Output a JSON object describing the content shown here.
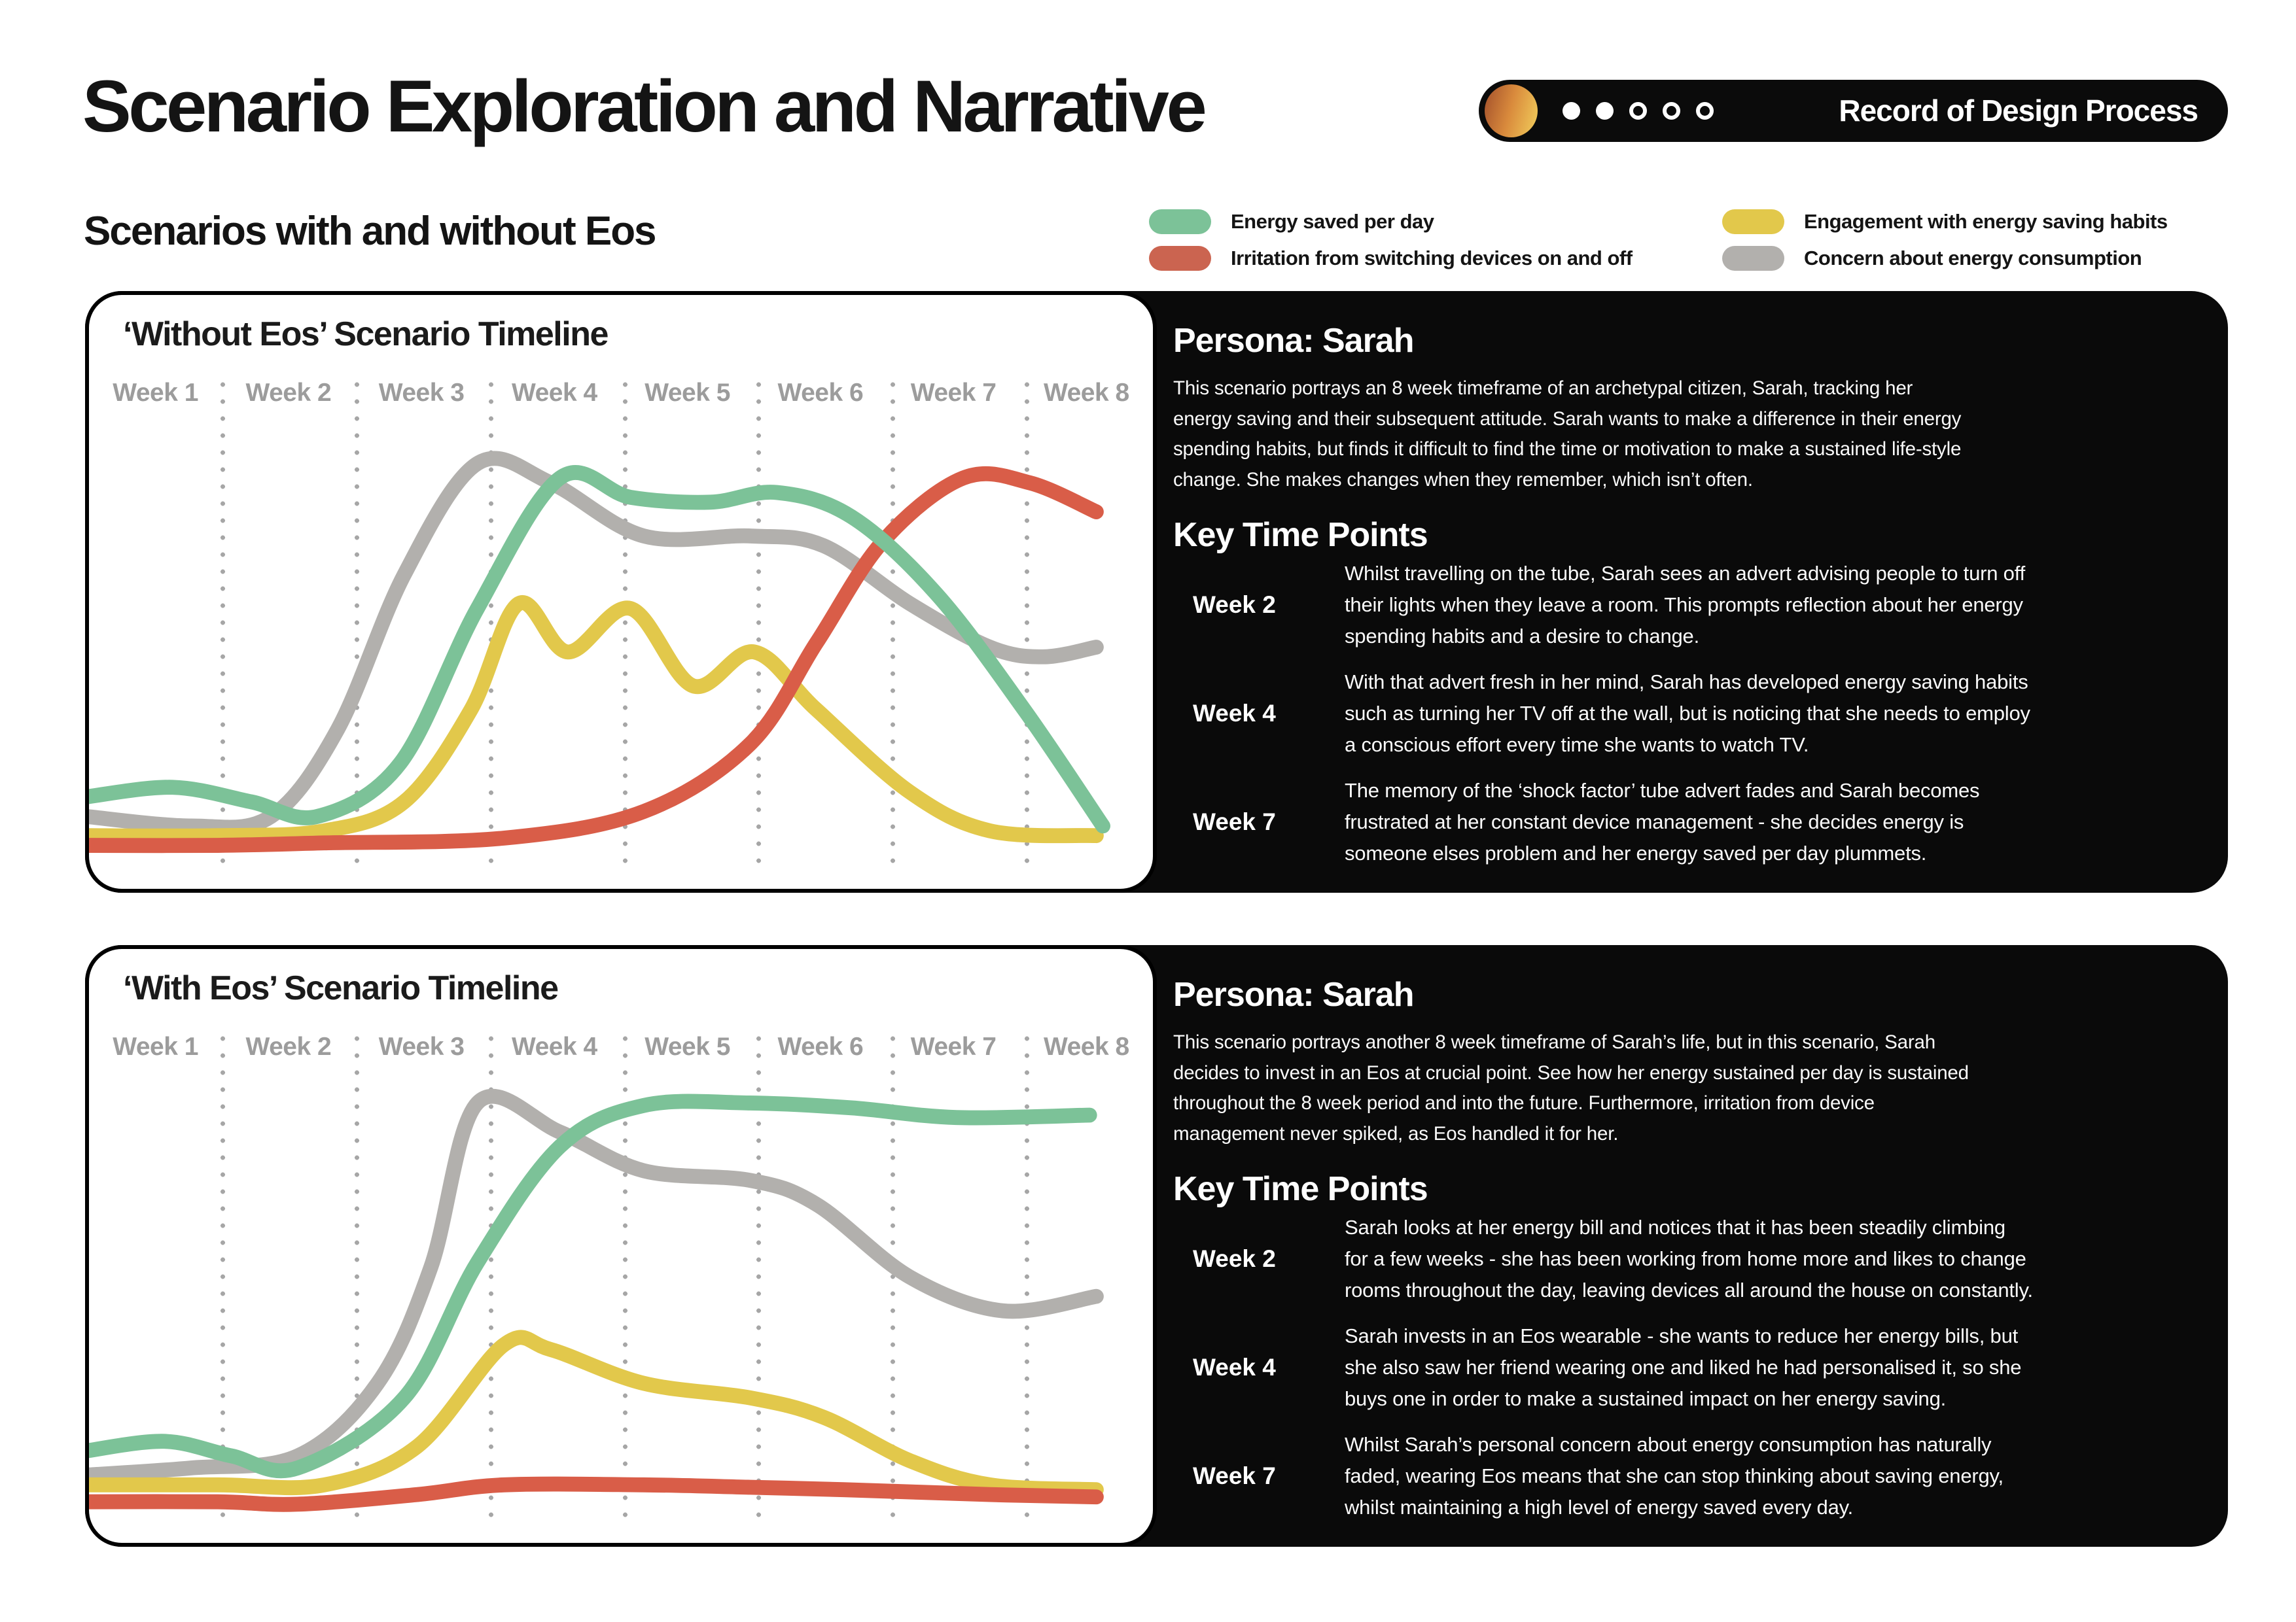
{
  "page": {
    "title": "Scenario Exploration and Narrative",
    "subtitle": "Scenarios with and without Eos"
  },
  "badge": {
    "label": "Record of Design Process",
    "dots_filled": 2,
    "dots_total": 5
  },
  "legend": [
    {
      "label": "Energy saved per day",
      "color": "#7cc298"
    },
    {
      "label": "Irritation from switching devices on and off",
      "color": "#cb6450"
    },
    {
      "label": "Engagement with energy saving habits",
      "color": "#e2c84b"
    },
    {
      "label": "Concern about energy consumption",
      "color": "#b2b0ad"
    }
  ],
  "panels": [
    {
      "chart_title": "‘Without Eos’ Scenario Timeline",
      "weeks": [
        "Week 1",
        "Week 2",
        "Week 3",
        "Week 4",
        "Week 5",
        "Week 6",
        "Week 7",
        "Week 8"
      ],
      "persona_heading": "Persona: Sarah",
      "intro": "This scenario portrays an 8 week timeframe of an archetypal citizen, Sarah, tracking her\nenergy saving and their subsequent attitude. Sarah wants to make a difference in their energy\nspending habits, but finds it difficult to find the time or motivation to make a sustained life-style\nchange. She makes changes when they remember, which isn’t often.",
      "key_heading": "Key Time Points",
      "key_points": [
        {
          "week": "Week 2",
          "text": "Whilst travelling on the tube, Sarah sees an advert advising people to turn off\ntheir lights when they leave a room. This prompts reflection about her energy\nspending habits and a desire to change."
        },
        {
          "week": "Week 4",
          "text": "With that advert fresh in her mind, Sarah has developed energy saving habits\nsuch as turning her TV off at the wall, but is noticing that she needs to employ\na conscious effort every time she wants to watch TV."
        },
        {
          "week": "Week 7",
          "text": "The memory of the ‘shock factor’ tube advert fades and Sarah becomes\nfrustrated at her constant device management - she decides energy is\nsomeone elses problem and her energy saved per day plummets."
        }
      ]
    },
    {
      "chart_title": "‘With Eos’ Scenario Timeline",
      "weeks": [
        "Week 1",
        "Week 2",
        "Week 3",
        "Week 4",
        "Week 5",
        "Week 6",
        "Week 7",
        "Week 8"
      ],
      "persona_heading": "Persona: Sarah",
      "intro": "This scenario portrays another 8 week timeframe of Sarah’s life, but in this scenario, Sarah\ndecides to invest in an Eos at crucial point. See how her energy sustained per day is sustained\nthroughout the 8 week period and into the future. Furthermore, irritation from device\nmanagement never spiked, as Eos handled it for her.",
      "key_heading": "Key Time Points",
      "key_points": [
        {
          "week": "Week 2",
          "text": "Sarah looks at her energy bill and notices that it has been steadily climbing\nfor a few weeks - she has been working from home more and likes to change\nrooms throughout the day, leaving devices all around the house on constantly."
        },
        {
          "week": "Week 4",
          "text": "Sarah invests in an Eos wearable - she wants to reduce her energy bills, but\nshe also saw her friend wearing one and liked he had personalised it, so she\nbuys one in order to make a sustained impact on her energy saving."
        },
        {
          "week": "Week 7",
          "text": "Whilst Sarah’s personal concern about energy consumption has naturally\nfaded, wearing Eos means that she can stop thinking about saving energy,\nwhilst maintaining a high level of energy saved every day."
        }
      ]
    }
  ],
  "chart_data": [
    {
      "type": "line",
      "title": "‘Without Eos’ Scenario Timeline",
      "xlabel": "Weeks 1-8",
      "ylabel": "Relative level (unlabelled, 0-100)",
      "x_categories": [
        "Week 1",
        "Week 2",
        "Week 3",
        "Week 4",
        "Week 5",
        "Week 6",
        "Week 7",
        "Week 8"
      ],
      "ylim": [
        0,
        100
      ],
      "grid": "dotted vertical week separators",
      "legend_position": "top of page, shared",
      "series": [
        {
          "id": "concern",
          "name": "Concern about energy consumption",
          "color": "#b2b0ad",
          "points": [
            [
              0.5,
              15
            ],
            [
              1.3,
              13
            ],
            [
              1.9,
              15
            ],
            [
              2.4,
              33
            ],
            [
              2.9,
              65
            ],
            [
              3.45,
              88
            ],
            [
              4.0,
              84
            ],
            [
              4.7,
              73
            ],
            [
              5.5,
              73
            ],
            [
              6.05,
              71
            ],
            [
              6.7,
              59
            ],
            [
              7.3,
              50
            ],
            [
              7.7,
              48
            ],
            [
              8.1,
              50
            ]
          ]
        },
        {
          "id": "engagement",
          "name": "Engagement with energy saving habits",
          "color": "#e2c84b",
          "points": [
            [
              0.5,
              11
            ],
            [
              1.5,
              11
            ],
            [
              2.3,
              12
            ],
            [
              2.9,
              18
            ],
            [
              3.4,
              37
            ],
            [
              3.76,
              59
            ],
            [
              4.13,
              49
            ],
            [
              4.6,
              58
            ],
            [
              5.07,
              42
            ],
            [
              5.53,
              49
            ],
            [
              6.0,
              37
            ],
            [
              6.7,
              20
            ],
            [
              7.3,
              12
            ],
            [
              8.1,
              11
            ]
          ]
        },
        {
          "id": "irritation",
          "name": "Irritation from switching devices on and off",
          "color": "#d95d48",
          "points": [
            [
              0.5,
              9
            ],
            [
              1.5,
              9
            ],
            [
              2.3,
              9.5
            ],
            [
              3.65,
              10.5
            ],
            [
              4.7,
              16
            ],
            [
              5.5,
              30
            ],
            [
              6.0,
              51
            ],
            [
              6.5,
              72
            ],
            [
              7.1,
              85
            ],
            [
              7.6,
              84
            ],
            [
              8.1,
              78
            ]
          ]
        },
        {
          "id": "energy",
          "name": "Energy saved per day",
          "color": "#7cc298",
          "points": [
            [
              0.5,
              19
            ],
            [
              1.16,
              21
            ],
            [
              1.75,
              18
            ],
            [
              2.25,
              15
            ],
            [
              2.87,
              26
            ],
            [
              3.45,
              58
            ],
            [
              4.07,
              85
            ],
            [
              4.6,
              81
            ],
            [
              5.2,
              80
            ],
            [
              5.7,
              82
            ],
            [
              6.26,
              77
            ],
            [
              6.9,
              61
            ],
            [
              7.56,
              37
            ],
            [
              8.15,
              13
            ]
          ]
        }
      ]
    },
    {
      "type": "line",
      "title": "‘With Eos’ Scenario Timeline",
      "xlabel": "Weeks 1-8",
      "ylabel": "Relative level (unlabelled, 0-100)",
      "x_categories": [
        "Week 1",
        "Week 2",
        "Week 3",
        "Week 4",
        "Week 5",
        "Week 6",
        "Week 7",
        "Week 8"
      ],
      "ylim": [
        0,
        100
      ],
      "grid": "dotted vertical week separators",
      "legend_position": "top of page, shared",
      "series": [
        {
          "id": "concern",
          "name": "Concern about energy consumption",
          "color": "#b2b0ad",
          "points": [
            [
              0.5,
              14
            ],
            [
              1.3,
              15.5
            ],
            [
              2.1,
              18
            ],
            [
              2.7,
              33
            ],
            [
              3.1,
              57
            ],
            [
              3.45,
              91
            ],
            [
              4.07,
              85
            ],
            [
              4.7,
              77
            ],
            [
              5.5,
              75
            ],
            [
              6.0,
              70
            ],
            [
              6.7,
              55
            ],
            [
              7.4,
              48
            ],
            [
              8.1,
              51
            ]
          ]
        },
        {
          "id": "engagement",
          "name": "Engagement with energy saving habits",
          "color": "#e2c84b",
          "points": [
            [
              0.5,
              12
            ],
            [
              1.5,
              12
            ],
            [
              2.3,
              12
            ],
            [
              3.0,
              20
            ],
            [
              3.65,
              41
            ],
            [
              4.0,
              40
            ],
            [
              4.7,
              33
            ],
            [
              5.5,
              30
            ],
            [
              6.05,
              26
            ],
            [
              6.7,
              17
            ],
            [
              7.3,
              12
            ],
            [
              8.1,
              11
            ]
          ]
        },
        {
          "id": "irritation",
          "name": "Irritation from switching devices on and off",
          "color": "#d95d48",
          "points": [
            [
              0.5,
              8.5
            ],
            [
              1.5,
              8.5
            ],
            [
              2.1,
              8
            ],
            [
              3.0,
              10
            ],
            [
              3.65,
              12
            ],
            [
              4.7,
              12
            ],
            [
              5.5,
              11.5
            ],
            [
              6.2,
              11
            ],
            [
              7.3,
              10
            ],
            [
              8.1,
              9.5
            ]
          ]
        },
        {
          "id": "energy",
          "name": "Energy saved per day",
          "color": "#7cc298",
          "points": [
            [
              0.5,
              19
            ],
            [
              1.1,
              21
            ],
            [
              1.6,
              18
            ],
            [
              2.1,
              15.5
            ],
            [
              2.9,
              30
            ],
            [
              3.45,
              58
            ],
            [
              4.07,
              82
            ],
            [
              4.7,
              90.5
            ],
            [
              5.5,
              91
            ],
            [
              6.26,
              90
            ],
            [
              7.05,
              88
            ],
            [
              8.05,
              88.5
            ]
          ]
        }
      ]
    }
  ]
}
